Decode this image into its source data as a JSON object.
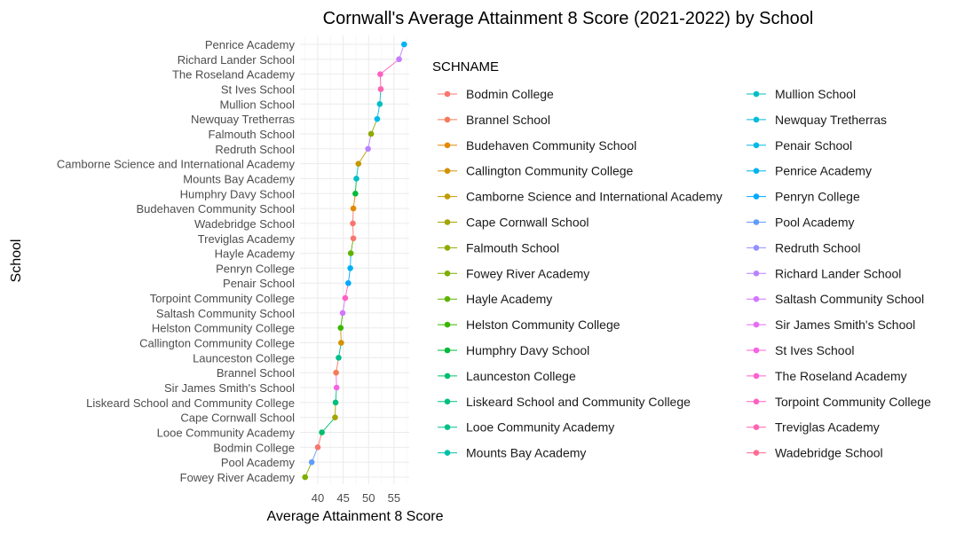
{
  "chart_data": {
    "type": "line",
    "title": "Cornwall's Average Attainment 8 Score (2021-2022) by School",
    "xlabel": "Average Attainment 8 Score",
    "ylabel": "School",
    "xlim": [
      36.5,
      58
    ],
    "x_ticks": [
      40,
      45,
      50,
      55
    ],
    "grid": true,
    "legend_title": "SCHNAME",
    "legend_position": "right",
    "points": [
      {
        "school": "Fowey River Academy",
        "score": 37.5,
        "color": "#7CAE00"
      },
      {
        "school": "Pool Academy",
        "score": 38.8,
        "color": "#619CFF"
      },
      {
        "school": "Bodmin College",
        "score": 40.0,
        "color": "#F8766D"
      },
      {
        "school": "Looe Community Academy",
        "score": 40.8,
        "color": "#00BE70"
      },
      {
        "school": "Cape Cornwall School",
        "score": 43.4,
        "color": "#A3A500"
      },
      {
        "school": "Liskeard School and Community College",
        "score": 43.5,
        "color": "#00BF7D"
      },
      {
        "school": "Sir James Smith's School",
        "score": 43.7,
        "color": "#F564E3"
      },
      {
        "school": "Brannel School",
        "score": 43.6,
        "color": "#F37B59"
      },
      {
        "school": "Launceston College",
        "score": 44.1,
        "color": "#00C08B"
      },
      {
        "school": "Callington Community College",
        "score": 44.6,
        "color": "#D39200"
      },
      {
        "school": "Helston Community College",
        "score": 44.5,
        "color": "#39B600"
      },
      {
        "school": "Saltash Community School",
        "score": 44.9,
        "color": "#D376FF"
      },
      {
        "school": "Torpoint Community College",
        "score": 45.4,
        "color": "#FF61C3"
      },
      {
        "school": "Penair School",
        "score": 46.0,
        "color": "#00A9FF"
      },
      {
        "school": "Penryn College",
        "score": 46.4,
        "color": "#00B0F6"
      },
      {
        "school": "Hayle Academy",
        "score": 46.5,
        "color": "#5EB300"
      },
      {
        "school": "Treviglas Academy",
        "score": 47.0,
        "color": "#F8766D"
      },
      {
        "school": "Wadebridge School",
        "score": 46.9,
        "color": "#F8766D"
      },
      {
        "school": "Budehaven Community School",
        "score": 47.0,
        "color": "#E38900"
      },
      {
        "school": "Humphry Davy School",
        "score": 47.4,
        "color": "#00BA38"
      },
      {
        "school": "Mounts Bay Academy",
        "score": 47.6,
        "color": "#00BFC4"
      },
      {
        "school": "Camborne Science and International Academy",
        "score": 48.0,
        "color": "#C49A00"
      },
      {
        "school": "Redruth School",
        "score": 49.9,
        "color": "#B983FF"
      },
      {
        "school": "Falmouth School",
        "score": 50.5,
        "color": "#8FAA00"
      },
      {
        "school": "Newquay Tretherras",
        "score": 51.7,
        "color": "#00B8E7"
      },
      {
        "school": "Mullion School",
        "score": 52.2,
        "color": "#00BFC4"
      },
      {
        "school": "St Ives School",
        "score": 52.4,
        "color": "#FF64B0"
      },
      {
        "school": "The Roseland Academy",
        "score": 52.3,
        "color": "#FF61C3"
      },
      {
        "school": "Richard Lander School",
        "score": 56.0,
        "color": "#C77CFF"
      },
      {
        "school": "Penrice Academy",
        "score": 57.0,
        "color": "#00B4F0"
      }
    ],
    "legend_col1": [
      {
        "label": "Bodmin College",
        "color": "#F8766D"
      },
      {
        "label": "Brannel School",
        "color": "#F37B59"
      },
      {
        "label": "Budehaven Community School",
        "color": "#E38900"
      },
      {
        "label": "Callington Community College",
        "color": "#D39200"
      },
      {
        "label": "Camborne Science and International Academy",
        "color": "#C49A00"
      },
      {
        "label": "Cape Cornwall School",
        "color": "#A3A500"
      },
      {
        "label": "Falmouth School",
        "color": "#8FAA00"
      },
      {
        "label": "Fowey River Academy",
        "color": "#7CAE00"
      },
      {
        "label": "Hayle Academy",
        "color": "#5EB300"
      },
      {
        "label": "Helston Community College",
        "color": "#39B600"
      },
      {
        "label": "Humphry Davy School",
        "color": "#00BA38"
      },
      {
        "label": "Launceston College",
        "color": "#00BE70"
      },
      {
        "label": "Liskeard School and Community College",
        "color": "#00BF7D"
      },
      {
        "label": "Looe Community Academy",
        "color": "#00C08B"
      },
      {
        "label": "Mounts Bay Academy",
        "color": "#00C1A7"
      }
    ],
    "legend_col2": [
      {
        "label": "Mullion School",
        "color": "#00BFC4"
      },
      {
        "label": "Newquay Tretherras",
        "color": "#00BCD8"
      },
      {
        "label": "Penair School",
        "color": "#00B8E7"
      },
      {
        "label": "Penrice Academy",
        "color": "#00B4F0"
      },
      {
        "label": "Penryn College",
        "color": "#00A9FF"
      },
      {
        "label": "Pool Academy",
        "color": "#619CFF"
      },
      {
        "label": "Redruth School",
        "color": "#9590FF"
      },
      {
        "label": "Richard Lander School",
        "color": "#B983FF"
      },
      {
        "label": "Saltash Community School",
        "color": "#D376FF"
      },
      {
        "label": "Sir James Smith's School",
        "color": "#E76BF3"
      },
      {
        "label": "St Ives School",
        "color": "#F564E3"
      },
      {
        "label": "The Roseland Academy",
        "color": "#FD61D1"
      },
      {
        "label": "Torpoint Community College",
        "color": "#FF61C3"
      },
      {
        "label": "Treviglas Academy",
        "color": "#FF64B0"
      },
      {
        "label": "Wadebridge School",
        "color": "#FF6C91"
      }
    ]
  }
}
